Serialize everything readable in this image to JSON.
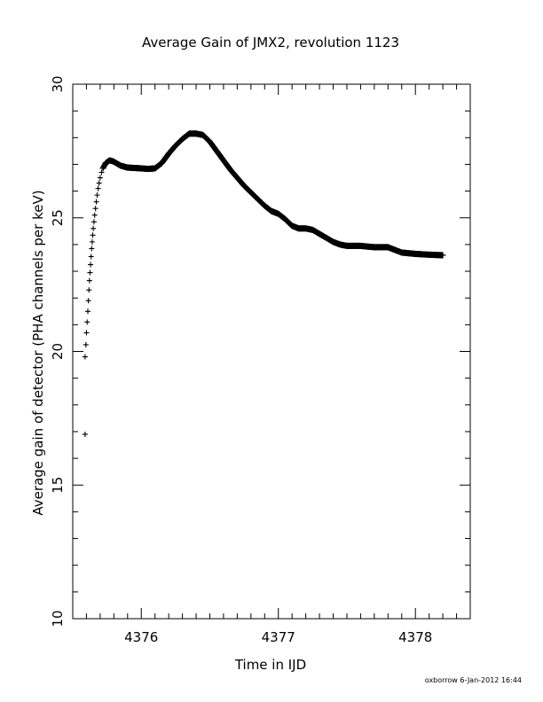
{
  "chart_data": {
    "type": "scatter",
    "title": "Average Gain of JMX2, revolution 1123",
    "xlabel": "Time in IJD",
    "ylabel": "Average gain of detector (PHA channels per keV)",
    "xlim": [
      4375.5,
      4378.4
    ],
    "ylim": [
      10,
      30
    ],
    "xticks": [
      4376,
      4377,
      4378
    ],
    "yticks": [
      10,
      15,
      20,
      25,
      30
    ],
    "xtick_labels": [
      "4376",
      "4377",
      "4378"
    ],
    "ytick_labels": [
      "10",
      "15",
      "20",
      "25",
      "30"
    ],
    "x_minor_step": 0.1,
    "y_minor_step": 1,
    "marker": "+",
    "color": "#000000",
    "grid": false,
    "initial_points": [
      [
        4375.59,
        16.9
      ],
      [
        4375.59,
        19.8
      ],
      [
        4375.596,
        20.25
      ],
      [
        4375.6,
        20.7
      ],
      [
        4375.605,
        21.1
      ],
      [
        4375.61,
        21.5
      ],
      [
        4375.614,
        21.9
      ],
      [
        4375.618,
        22.3
      ],
      [
        4375.622,
        22.65
      ],
      [
        4375.626,
        22.95
      ],
      [
        4375.63,
        23.25
      ],
      [
        4375.634,
        23.55
      ],
      [
        4375.638,
        23.85
      ],
      [
        4375.642,
        24.1
      ],
      [
        4375.646,
        24.35
      ],
      [
        4375.65,
        24.6
      ],
      [
        4375.655,
        24.85
      ],
      [
        4375.66,
        25.1
      ],
      [
        4375.666,
        25.35
      ],
      [
        4375.672,
        25.6
      ],
      [
        4375.678,
        25.85
      ],
      [
        4375.685,
        26.1
      ],
      [
        4375.692,
        26.3
      ],
      [
        4375.7,
        26.5
      ],
      [
        4375.71,
        26.7
      ],
      [
        4375.72,
        26.85
      ]
    ],
    "curve": [
      [
        4375.72,
        26.85
      ],
      [
        4375.74,
        27.05
      ],
      [
        4375.77,
        27.15
      ],
      [
        4375.8,
        27.1
      ],
      [
        4375.85,
        26.95
      ],
      [
        4375.9,
        26.88
      ],
      [
        4376.0,
        26.85
      ],
      [
        4376.05,
        26.83
      ],
      [
        4376.1,
        26.85
      ],
      [
        4376.15,
        27.05
      ],
      [
        4376.2,
        27.4
      ],
      [
        4376.25,
        27.7
      ],
      [
        4376.3,
        27.95
      ],
      [
        4376.35,
        28.15
      ],
      [
        4376.4,
        28.15
      ],
      [
        4376.45,
        28.1
      ],
      [
        4376.5,
        27.85
      ],
      [
        4376.55,
        27.5
      ],
      [
        4376.6,
        27.15
      ],
      [
        4376.65,
        26.8
      ],
      [
        4376.7,
        26.5
      ],
      [
        4376.75,
        26.2
      ],
      [
        4376.8,
        25.95
      ],
      [
        4376.85,
        25.7
      ],
      [
        4376.9,
        25.45
      ],
      [
        4376.95,
        25.25
      ],
      [
        4377.0,
        25.15
      ],
      [
        4377.05,
        24.95
      ],
      [
        4377.1,
        24.7
      ],
      [
        4377.15,
        24.6
      ],
      [
        4377.2,
        24.6
      ],
      [
        4377.25,
        24.55
      ],
      [
        4377.3,
        24.4
      ],
      [
        4377.35,
        24.25
      ],
      [
        4377.4,
        24.1
      ],
      [
        4377.45,
        24.0
      ],
      [
        4377.5,
        23.95
      ],
      [
        4377.6,
        23.95
      ],
      [
        4377.7,
        23.9
      ],
      [
        4377.8,
        23.9
      ],
      [
        4377.85,
        23.8
      ],
      [
        4377.9,
        23.7
      ],
      [
        4378.0,
        23.65
      ],
      [
        4378.1,
        23.62
      ],
      [
        4378.2,
        23.6
      ]
    ]
  },
  "footer": {
    "stamp": "oxborrow  6-Jan-2012 16:44"
  }
}
